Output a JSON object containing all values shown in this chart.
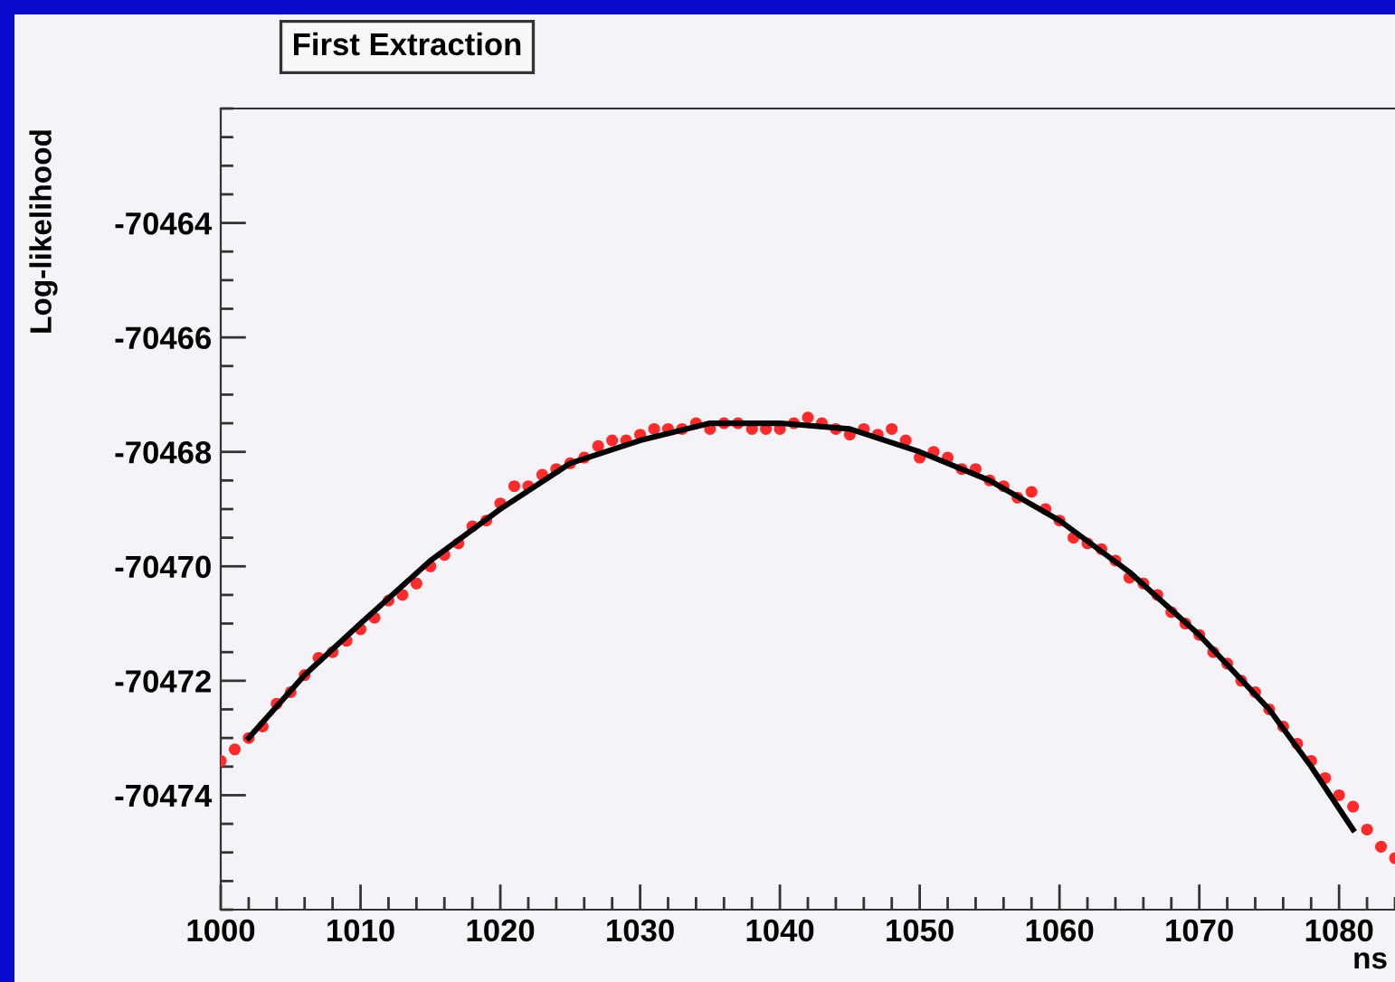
{
  "chart_data": {
    "type": "scatter",
    "title": "First Extraction",
    "xlabel": "ns",
    "ylabel": "Log-likelihood",
    "xlim": [
      1000,
      1084
    ],
    "xticks": [
      1000,
      1010,
      1020,
      1030,
      1040,
      1050,
      1060,
      1070,
      1080
    ],
    "ylim": [
      -70476,
      -70462
    ],
    "yticks": [
      -70474,
      -70472,
      -70470,
      -70468,
      -70466,
      -70464
    ],
    "grid": false,
    "legend": false,
    "marker": "circle",
    "series": [
      {
        "type": "scatter",
        "color": "#ff2a2a",
        "x": [
          1000,
          1001,
          1002,
          1003,
          1004,
          1005,
          1006,
          1007,
          1008,
          1009,
          1010,
          1011,
          1012,
          1013,
          1014,
          1015,
          1016,
          1017,
          1018,
          1019,
          1020,
          1021,
          1022,
          1023,
          1024,
          1025,
          1026,
          1027,
          1028,
          1029,
          1030,
          1031,
          1032,
          1033,
          1034,
          1035,
          1036,
          1037,
          1038,
          1039,
          1040,
          1041,
          1042,
          1043,
          1044,
          1045,
          1046,
          1047,
          1048,
          1049,
          1050,
          1051,
          1052,
          1053,
          1054,
          1055,
          1056,
          1057,
          1058,
          1059,
          1060,
          1061,
          1062,
          1063,
          1064,
          1065,
          1066,
          1067,
          1068,
          1069,
          1070,
          1071,
          1072,
          1073,
          1074,
          1075,
          1076,
          1077,
          1078,
          1079,
          1080,
          1081,
          1082,
          1083,
          1084
        ],
        "values": [
          -70473.4,
          -70473.2,
          -70473.0,
          -70472.8,
          -70472.4,
          -70472.2,
          -70471.9,
          -70471.6,
          -70471.5,
          -70471.3,
          -70471.1,
          -70470.9,
          -70470.6,
          -70470.5,
          -70470.3,
          -70470.0,
          -70469.8,
          -70469.6,
          -70469.3,
          -70469.2,
          -70468.9,
          -70468.6,
          -70468.6,
          -70468.4,
          -70468.3,
          -70468.2,
          -70468.1,
          -70467.9,
          -70467.8,
          -70467.8,
          -70467.7,
          -70467.6,
          -70467.6,
          -70467.6,
          -70467.5,
          -70467.6,
          -70467.5,
          -70467.5,
          -70467.6,
          -70467.6,
          -70467.6,
          -70467.5,
          -70467.4,
          -70467.5,
          -70467.6,
          -70467.7,
          -70467.6,
          -70467.7,
          -70467.6,
          -70467.8,
          -70468.1,
          -70468.0,
          -70468.1,
          -70468.3,
          -70468.3,
          -70468.5,
          -70468.6,
          -70468.8,
          -70468.7,
          -70469.0,
          -70469.2,
          -70469.5,
          -70469.6,
          -70469.7,
          -70469.9,
          -70470.2,
          -70470.3,
          -70470.5,
          -70470.8,
          -70471.0,
          -70471.2,
          -70471.5,
          -70471.7,
          -70472.0,
          -70472.2,
          -70472.5,
          -70472.8,
          -70473.1,
          -70473.4,
          -70473.7,
          -70474.0,
          -70474.2,
          -70474.6,
          -70474.9,
          -70475.1
        ]
      },
      {
        "type": "line",
        "color": "#000000",
        "marker": "none",
        "line_style": "solid",
        "x": [
          1002,
          1006,
          1010,
          1015,
          1020,
          1025,
          1030,
          1035,
          1040,
          1045,
          1050,
          1055,
          1060,
          1065,
          1070,
          1075,
          1078,
          1081
        ],
        "values": [
          -70473.0,
          -70471.9,
          -70471.0,
          -70469.9,
          -70469.0,
          -70468.2,
          -70467.8,
          -70467.5,
          -70467.5,
          -70467.6,
          -70468.0,
          -70468.5,
          -70469.2,
          -70470.1,
          -70471.2,
          -70472.5,
          -70473.5,
          -70474.6
        ]
      }
    ]
  }
}
